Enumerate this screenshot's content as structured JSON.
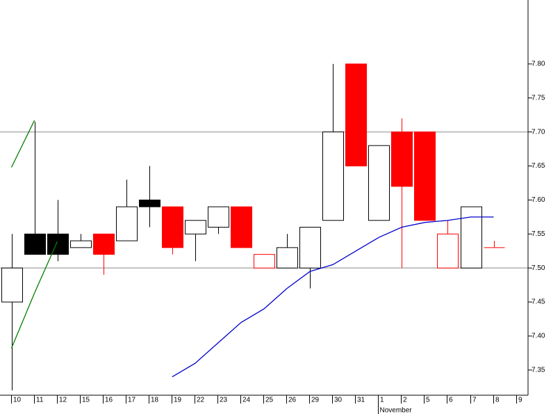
{
  "chart_data": {
    "type": "candlestick",
    "categories": [
      "10",
      "11",
      "12",
      "15",
      "16",
      "17",
      "18",
      "19",
      "22",
      "23",
      "24",
      "25",
      "26",
      "29",
      "30",
      "31",
      "1",
      "2",
      "5",
      "6",
      "7",
      "8",
      "9"
    ],
    "month_label": "November",
    "month_start_category": "1",
    "open": [
      7.45,
      7.55,
      7.55,
      7.53,
      7.55,
      7.54,
      7.6,
      7.59,
      7.55,
      7.56,
      7.59,
      7.5,
      7.5,
      7.5,
      7.57,
      7.8,
      7.57,
      7.7,
      7.7,
      7.5,
      7.5,
      7.53,
      null
    ],
    "high": [
      7.55,
      7.715,
      7.6,
      7.55,
      7.55,
      7.63,
      7.65,
      7.59,
      7.57,
      7.59,
      7.59,
      7.52,
      7.55,
      7.56,
      7.8,
      7.8,
      7.68,
      7.72,
      7.7,
      7.57,
      7.59,
      7.54,
      null
    ],
    "low": [
      7.32,
      7.52,
      7.51,
      7.53,
      7.49,
      7.54,
      7.56,
      7.52,
      7.51,
      7.55,
      7.53,
      7.5,
      7.5,
      7.47,
      7.57,
      7.65,
      7.57,
      7.5,
      7.57,
      7.5,
      7.5,
      7.53,
      null
    ],
    "close": [
      7.5,
      7.52,
      7.52,
      7.54,
      7.52,
      7.59,
      7.59,
      7.53,
      7.57,
      7.59,
      7.53,
      7.52,
      7.53,
      7.56,
      7.7,
      7.65,
      7.68,
      7.62,
      7.57,
      7.55,
      7.59,
      7.53,
      null
    ],
    "fills": [
      "#ffffff",
      "#000000",
      "#000000",
      "#ffffff",
      "#ff0000",
      "#ffffff",
      "#000000",
      "#ff0000",
      "#ffffff",
      "#ffffff",
      "#ff0000",
      "#ffffff",
      "#ffffff",
      "#ffffff",
      "#ffffff",
      "#ff0000",
      "#ffffff",
      "#ff0000",
      "#ff0000",
      "#ffffff",
      "#ffffff",
      "#ff0000",
      null
    ],
    "strokes": [
      "#000000",
      "#000000",
      "#000000",
      "#000000",
      "#ff0000",
      "#000000",
      "#000000",
      "#ff0000",
      "#000000",
      "#000000",
      "#ff0000",
      "#ff0000",
      "#000000",
      "#000000",
      "#000000",
      "#ff0000",
      "#000000",
      "#ff0000",
      "#ff0000",
      "#ff0000",
      "#000000",
      "#ff0000",
      null
    ],
    "lines": [
      {
        "color": "#0000cc",
        "values": [
          null,
          null,
          null,
          null,
          null,
          null,
          null,
          7.34,
          7.36,
          7.39,
          7.42,
          7.44,
          7.47,
          7.495,
          7.505,
          7.525,
          7.545,
          7.56,
          7.567,
          7.57,
          7.575,
          7.575,
          null
        ]
      },
      {
        "color": "#008000",
        "values": [
          7.648,
          7.717,
          null,
          null,
          null,
          null,
          null,
          null,
          null,
          null,
          null,
          null,
          null,
          null,
          null,
          null,
          null,
          null,
          null,
          null,
          null,
          null,
          null
        ]
      },
      {
        "color": "#008000",
        "values": [
          7.382,
          7.463,
          7.539,
          null,
          null,
          null,
          null,
          null,
          null,
          null,
          null,
          null,
          null,
          null,
          null,
          null,
          null,
          null,
          null,
          null,
          null,
          null,
          null
        ]
      }
    ],
    "hlines": [
      7.7,
      7.5
    ],
    "hline_color": "#b0b0b0",
    "ylim": [
      7.313,
      7.894
    ],
    "yticks": [
      {
        "value": 7.35,
        "label": "7.35"
      },
      {
        "value": 7.4,
        "label": "7.40"
      },
      {
        "value": 7.45,
        "label": "7.45"
      },
      {
        "value": 7.5,
        "label": "7.50"
      },
      {
        "value": 7.55,
        "label": "7.55"
      },
      {
        "value": 7.6,
        "label": "7.60"
      },
      {
        "value": 7.65,
        "label": "7.65"
      },
      {
        "value": 7.7,
        "label": "7.70"
      },
      {
        "value": 7.75,
        "label": "7.75"
      },
      {
        "value": 7.8,
        "label": "7.80"
      }
    ]
  }
}
